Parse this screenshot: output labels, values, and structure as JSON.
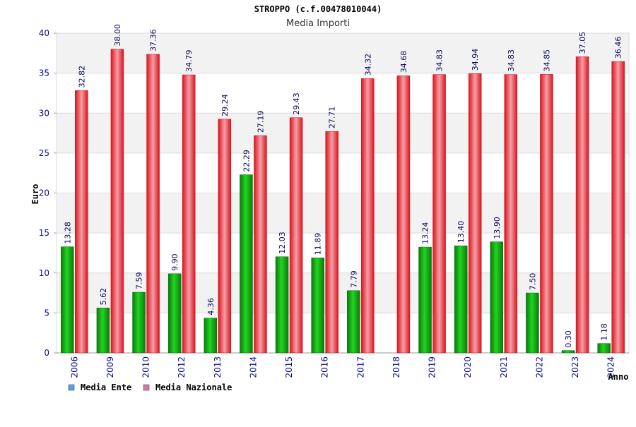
{
  "chart_data": {
    "type": "bar",
    "title": "STROPPO (c.f.00478010044)",
    "subtitle": "Media Importi",
    "xlabel": "Anno",
    "ylabel": "Euro",
    "ylim": [
      0,
      40
    ],
    "yticks": [
      "0",
      "5",
      "10",
      "15",
      "20",
      "25",
      "30",
      "35",
      "40"
    ],
    "grid": true,
    "legend_position": "bottom-left",
    "categories": [
      "2006",
      "2009",
      "2010",
      "2012",
      "2013",
      "2014",
      "2015",
      "2016",
      "2017",
      "2018",
      "2019",
      "2020",
      "2021",
      "2022",
      "2023",
      "2024"
    ],
    "series": [
      {
        "name": "Media Ente",
        "color": "#1a9e1a",
        "legend_color": "#5aa0e6",
        "values": [
          13.28,
          5.62,
          7.59,
          9.9,
          4.36,
          22.29,
          12.03,
          11.89,
          7.79,
          null,
          13.24,
          13.4,
          13.9,
          7.5,
          0.3,
          1.18
        ],
        "labels": [
          "13.28",
          "5.62",
          "7.59",
          "9.90",
          "4.36",
          "22.29",
          "12.03",
          "11.89",
          "7.79",
          "",
          "13.24",
          "13.40",
          "13.90",
          "7.50",
          "0.30",
          "1.18"
        ]
      },
      {
        "name": "Media Nazionale",
        "color": "#e0121a",
        "legend_color": "#d977a8",
        "values": [
          32.82,
          38.0,
          37.36,
          34.79,
          29.24,
          27.19,
          29.43,
          27.71,
          34.32,
          34.68,
          34.83,
          34.94,
          34.83,
          34.85,
          37.05,
          36.46
        ],
        "labels": [
          "32.82",
          "38.00",
          "37.36",
          "34.79",
          "29.24",
          "27.19",
          "29.43",
          "27.71",
          "34.32",
          "34.68",
          "34.83",
          "34.94",
          "34.83",
          "34.85",
          "37.05",
          "36.46"
        ]
      }
    ]
  }
}
